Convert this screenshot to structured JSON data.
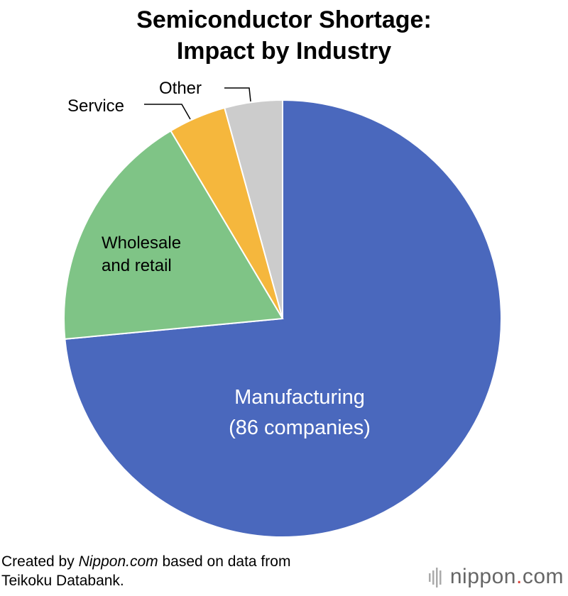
{
  "title_line1": "Semiconductor Shortage:",
  "title_line2": "Impact by Industry",
  "chart_data": {
    "type": "pie",
    "title": "Semiconductor Shortage: Impact by Industry",
    "slices": [
      {
        "label_lines": [
          "Manufacturing",
          "(86 companies)"
        ],
        "value": 86,
        "color": "#4a68bd",
        "label_color": "#ffffff"
      },
      {
        "label_lines": [
          "Wholesale",
          "and retail"
        ],
        "value": 21,
        "color": "#7fc486",
        "label_color": "#000000"
      },
      {
        "label_lines": [
          "Service"
        ],
        "value": 5,
        "color": "#f5b73d",
        "label_color": "#000000"
      },
      {
        "label_lines": [
          "Other"
        ],
        "value": 5,
        "color": "#cccccc",
        "label_color": "#000000"
      }
    ],
    "start": "12 o'clock",
    "direction": "clockwise"
  },
  "footer": {
    "created_by": "Created by",
    "source_name": "Nippon.com",
    "based_on": "based on data from",
    "line2": "Teikoku Databank."
  },
  "brand": {
    "name_part1": "nippon",
    "dot": ".",
    "name_part2": "com"
  }
}
